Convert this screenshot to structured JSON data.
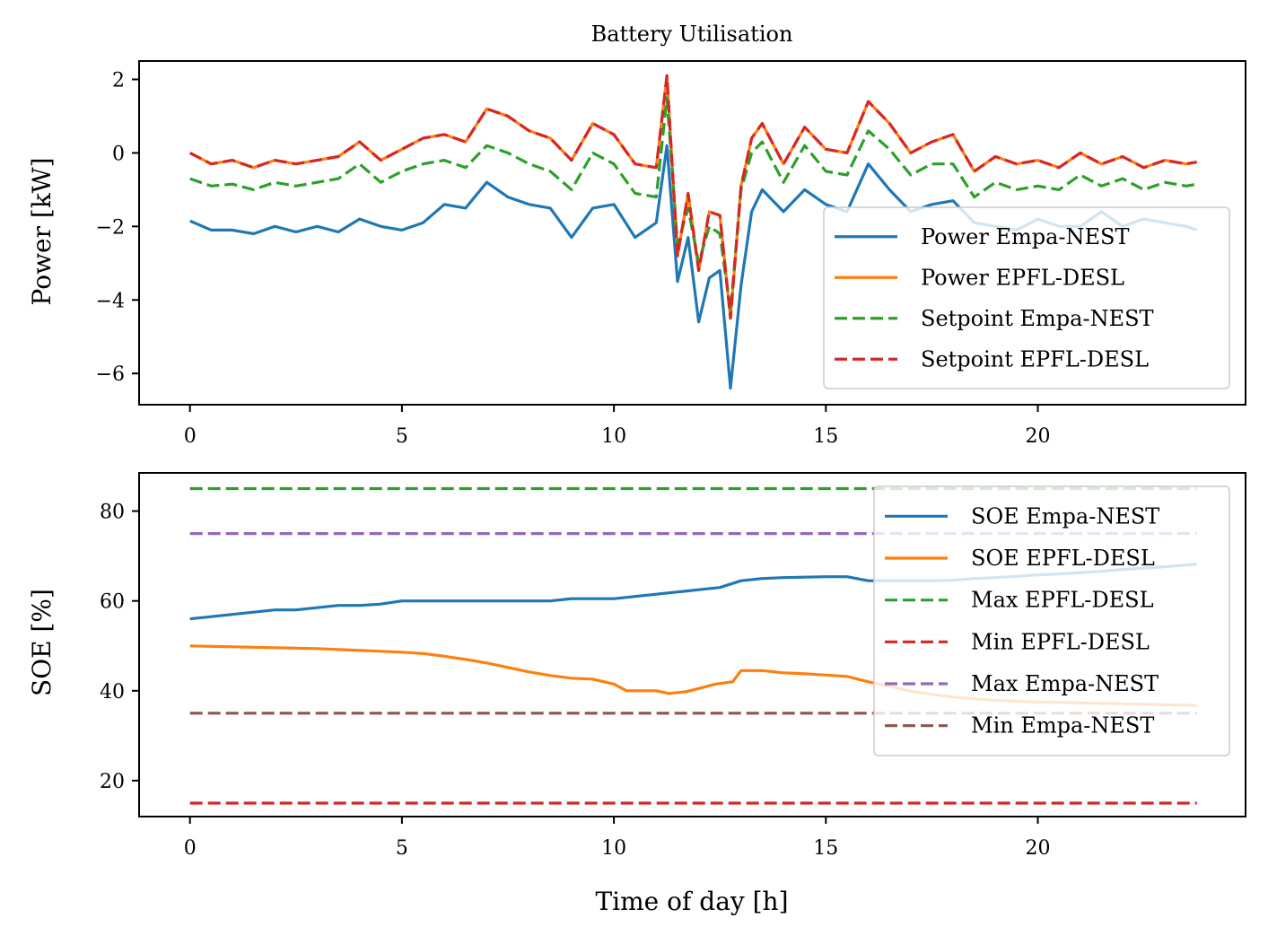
{
  "chart_data": [
    {
      "type": "line",
      "title": "Battery Utilisation",
      "xlabel": "",
      "ylabel": "Power [kW]",
      "xlim": [
        -1.2,
        24.9
      ],
      "ylim": [
        -6.85,
        2.5
      ],
      "xticks": [
        0,
        5,
        10,
        15,
        20
      ],
      "yticks": [
        2,
        0,
        -2,
        -4,
        -6
      ],
      "xtick_labels": [
        "0",
        "5",
        "10",
        "15",
        "20"
      ],
      "ytick_labels": [
        "2",
        "0",
        "−2",
        "−4",
        "−6"
      ],
      "legend_position": "lower-right",
      "series": [
        {
          "name": "Power Empa-NEST",
          "color": "#1f77b4",
          "style": "solid",
          "x": [
            0,
            0.5,
            1,
            1.5,
            2,
            2.5,
            3,
            3.5,
            4,
            4.5,
            5,
            5.5,
            6,
            6.5,
            7,
            7.5,
            8,
            8.5,
            9,
            9.5,
            10,
            10.5,
            11,
            11.25,
            11.5,
            11.75,
            12,
            12.25,
            12.5,
            12.75,
            13,
            13.25,
            13.5,
            14,
            14.5,
            15,
            15.5,
            16,
            16.5,
            17,
            17.5,
            18,
            18.5,
            19,
            19.5,
            20,
            20.5,
            21,
            21.5,
            22,
            22.5,
            23,
            23.5,
            23.75
          ],
          "values": [
            -1.85,
            -2.1,
            -2.1,
            -2.2,
            -2.0,
            -2.15,
            -2.0,
            -2.15,
            -1.8,
            -2.0,
            -2.1,
            -1.9,
            -1.4,
            -1.5,
            -0.8,
            -1.2,
            -1.4,
            -1.5,
            -2.3,
            -1.5,
            -1.4,
            -2.3,
            -1.9,
            0.2,
            -3.5,
            -2.3,
            -4.6,
            -3.4,
            -3.2,
            -6.4,
            -3.6,
            -1.6,
            -1.0,
            -1.6,
            -1.0,
            -1.4,
            -1.6,
            -0.3,
            -1.0,
            -1.6,
            -1.4,
            -1.3,
            -1.9,
            -2.0,
            -2.1,
            -1.8,
            -2.0,
            -2.0,
            -1.6,
            -2.0,
            -1.8,
            -1.9,
            -2.0,
            -2.1
          ]
        },
        {
          "name": "Power EPFL-DESL",
          "color": "#ff7f0e",
          "style": "solid",
          "x": [
            0,
            0.5,
            1,
            1.5,
            2,
            2.5,
            3,
            3.5,
            4,
            4.5,
            5,
            5.5,
            6,
            6.5,
            7,
            7.5,
            8,
            8.5,
            9,
            9.5,
            10,
            10.5,
            11,
            11.25,
            11.5,
            11.75,
            12,
            12.25,
            12.5,
            12.75,
            13,
            13.25,
            13.5,
            14,
            14.5,
            15,
            15.5,
            16,
            16.5,
            17,
            17.5,
            18,
            18.5,
            19,
            19.5,
            20,
            20.5,
            21,
            21.5,
            22,
            22.5,
            23,
            23.5,
            23.75
          ],
          "values": [
            0,
            -0.3,
            -0.2,
            -0.4,
            -0.2,
            -0.3,
            -0.2,
            -0.1,
            0.3,
            -0.2,
            0.1,
            0.4,
            0.5,
            0.3,
            1.2,
            1.0,
            0.6,
            0.4,
            -0.2,
            0.8,
            0.5,
            -0.3,
            -0.4,
            2.1,
            -2.8,
            -1.1,
            -3.2,
            -1.6,
            -1.7,
            -4.5,
            -0.9,
            0.4,
            0.8,
            -0.3,
            0.7,
            0.1,
            0.0,
            1.4,
            0.8,
            0.0,
            0.3,
            0.5,
            -0.5,
            -0.1,
            -0.3,
            -0.2,
            -0.4,
            0.0,
            -0.3,
            -0.1,
            -0.4,
            -0.2,
            -0.3,
            -0.25
          ]
        },
        {
          "name": "Setpoint Empa-NEST",
          "color": "#2ca02c",
          "style": "dashed",
          "x": [
            0,
            0.5,
            1,
            1.5,
            2,
            2.5,
            3,
            3.5,
            4,
            4.5,
            5,
            5.5,
            6,
            6.5,
            7,
            7.5,
            8,
            8.5,
            9,
            9.5,
            10,
            10.5,
            11,
            11.25,
            11.5,
            11.75,
            12,
            12.25,
            12.5,
            12.75,
            13,
            13.25,
            13.5,
            14,
            14.5,
            15,
            15.5,
            16,
            16.5,
            17,
            17.5,
            18,
            18.5,
            19,
            19.5,
            20,
            20.5,
            21,
            21.5,
            22,
            22.5,
            23,
            23.5,
            23.75
          ],
          "values": [
            -0.7,
            -0.9,
            -0.85,
            -1.0,
            -0.8,
            -0.9,
            -0.8,
            -0.7,
            -0.3,
            -0.8,
            -0.5,
            -0.3,
            -0.2,
            -0.4,
            0.2,
            0.0,
            -0.3,
            -0.5,
            -1.0,
            0.0,
            -0.3,
            -1.1,
            -1.2,
            1.5,
            -2.5,
            -1.5,
            -3.0,
            -2.0,
            -2.2,
            -4.3,
            -1.0,
            0.0,
            0.3,
            -0.8,
            0.2,
            -0.5,
            -0.6,
            0.6,
            0.1,
            -0.6,
            -0.3,
            -0.3,
            -1.2,
            -0.8,
            -1.0,
            -0.9,
            -1.0,
            -0.6,
            -0.9,
            -0.7,
            -1.0,
            -0.8,
            -0.9,
            -0.85
          ]
        },
        {
          "name": "Setpoint EPFL-DESL",
          "color": "#d62728",
          "style": "dashed",
          "x": [
            0,
            0.5,
            1,
            1.5,
            2,
            2.5,
            3,
            3.5,
            4,
            4.5,
            5,
            5.5,
            6,
            6.5,
            7,
            7.5,
            8,
            8.5,
            9,
            9.5,
            10,
            10.5,
            11,
            11.25,
            11.5,
            11.75,
            12,
            12.25,
            12.5,
            12.75,
            13,
            13.25,
            13.5,
            14,
            14.5,
            15,
            15.5,
            16,
            16.5,
            17,
            17.5,
            18,
            18.5,
            19,
            19.5,
            20,
            20.5,
            21,
            21.5,
            22,
            22.5,
            23,
            23.5,
            23.75
          ],
          "values": [
            0,
            -0.3,
            -0.2,
            -0.4,
            -0.2,
            -0.3,
            -0.2,
            -0.1,
            0.3,
            -0.2,
            0.1,
            0.4,
            0.5,
            0.3,
            1.2,
            1.0,
            0.6,
            0.4,
            -0.2,
            0.8,
            0.5,
            -0.3,
            -0.4,
            2.1,
            -2.8,
            -1.1,
            -3.2,
            -1.6,
            -1.7,
            -4.5,
            -0.9,
            0.4,
            0.8,
            -0.3,
            0.7,
            0.1,
            0.0,
            1.4,
            0.8,
            0.0,
            0.3,
            0.5,
            -0.5,
            -0.1,
            -0.3,
            -0.2,
            -0.4,
            0.0,
            -0.3,
            -0.1,
            -0.4,
            -0.2,
            -0.3,
            -0.25
          ]
        }
      ]
    },
    {
      "type": "line",
      "title": "",
      "xlabel": "Time of day [h]",
      "ylabel": "SOE [%]",
      "xlim": [
        -1.2,
        24.9
      ],
      "ylim": [
        12,
        88.5
      ],
      "xticks": [
        0,
        5,
        10,
        15,
        20
      ],
      "yticks": [
        80,
        60,
        40,
        20
      ],
      "xtick_labels": [
        "0",
        "5",
        "10",
        "15",
        "20"
      ],
      "ytick_labels": [
        "80",
        "60",
        "40",
        "20"
      ],
      "legend_position": "right",
      "series": [
        {
          "name": "SOE Empa-NEST",
          "color": "#1f77b4",
          "style": "solid",
          "x": [
            0,
            0.5,
            1,
            1.5,
            2,
            2.5,
            3,
            3.5,
            4,
            4.5,
            5,
            5.5,
            6,
            6.5,
            7,
            7.5,
            8,
            8.5,
            9,
            9.5,
            10,
            10.5,
            11,
            11.5,
            12,
            12.5,
            13,
            13.5,
            14,
            14.5,
            15,
            15.5,
            16,
            16.5,
            17,
            17.5,
            18,
            18.5,
            19,
            19.5,
            20,
            20.5,
            21,
            21.5,
            22,
            22.5,
            23,
            23.5,
            23.75
          ],
          "values": [
            56,
            56.5,
            57,
            57.5,
            58,
            58,
            58.5,
            59,
            59,
            59.3,
            60,
            60,
            60,
            60,
            60,
            60,
            60,
            60,
            60.5,
            60.5,
            60.5,
            61,
            61.5,
            62,
            62.5,
            63,
            64.5,
            65,
            65.2,
            65.3,
            65.4,
            65.4,
            64.5,
            64.5,
            64.5,
            64.5,
            64.6,
            65,
            65.2,
            65.5,
            65.8,
            66,
            66.3,
            66.6,
            67,
            67.3,
            67.6,
            68,
            68.2
          ]
        },
        {
          "name": "SOE EPFL-DESL",
          "color": "#ff7f0e",
          "style": "solid",
          "x": [
            0,
            0.5,
            1,
            1.5,
            2,
            2.5,
            3,
            3.5,
            4,
            4.5,
            5,
            5.5,
            6,
            6.5,
            7,
            7.5,
            8,
            8.5,
            9,
            9.5,
            10,
            10.3,
            11,
            11.3,
            11.7,
            12,
            12.4,
            12.8,
            13,
            13.5,
            14,
            14.5,
            15,
            15.5,
            16,
            16.5,
            17,
            17.5,
            18,
            18.5,
            19,
            19.5,
            20,
            20.5,
            21,
            21.5,
            22,
            22.5,
            23,
            23.5,
            23.75
          ],
          "values": [
            50,
            49.9,
            49.8,
            49.7,
            49.6,
            49.5,
            49.4,
            49.2,
            49.0,
            48.8,
            48.6,
            48.3,
            47.7,
            47,
            46.2,
            45.2,
            44.2,
            43.4,
            42.8,
            42.6,
            41.5,
            40,
            40,
            39.4,
            39.8,
            40.5,
            41.5,
            42,
            44.5,
            44.5,
            44.0,
            43.8,
            43.5,
            43.2,
            42.0,
            41.0,
            39.9,
            39.2,
            38.6,
            38.2,
            37.9,
            37.7,
            37.5,
            37.4,
            37.3,
            37.2,
            37.1,
            37.0,
            36.9,
            36.8,
            36.7
          ]
        },
        {
          "name": "Max EPFL-DESL",
          "color": "#2ca02c",
          "style": "dashed",
          "x": [
            0,
            23.75
          ],
          "values": [
            85,
            85
          ]
        },
        {
          "name": "Min EPFL-DESL",
          "color": "#d62728",
          "style": "dashed",
          "x": [
            0,
            23.75
          ],
          "values": [
            15,
            15
          ]
        },
        {
          "name": "Max Empa-NEST",
          "color": "#9467bd",
          "style": "dashed",
          "x": [
            0,
            23.75
          ],
          "values": [
            75,
            75
          ]
        },
        {
          "name": "Min Empa-NEST",
          "color": "#8c564b",
          "style": "dashed",
          "x": [
            0,
            23.75
          ],
          "values": [
            35,
            35
          ]
        }
      ]
    }
  ]
}
